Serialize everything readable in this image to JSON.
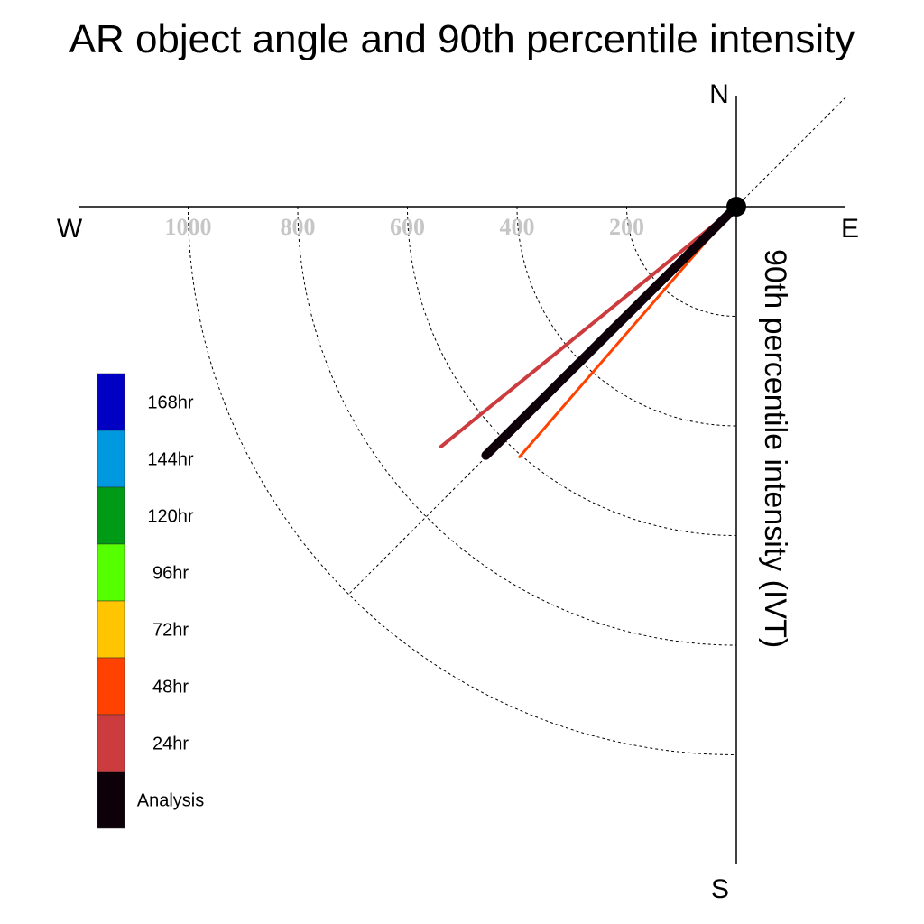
{
  "chart_data": {
    "type": "polar-vector",
    "title": "AR object angle and 90th percentile intensity",
    "radial_axis_label": "90th percentile intensity (IVT)",
    "radial_ticks": [
      200,
      400,
      600,
      800,
      1000
    ],
    "compass": {
      "north": "N",
      "south": "S",
      "east": "E",
      "west": "W"
    },
    "grid": true,
    "legend_position": "left",
    "legend": [
      {
        "label": "168hr",
        "color": "#0000c4"
      },
      {
        "label": "144hr",
        "color": "#0098df"
      },
      {
        "label": "120hr",
        "color": "#009b16"
      },
      {
        "label": "96hr",
        "color": "#56ff00"
      },
      {
        "label": "72hr",
        "color": "#ffc500"
      },
      {
        "label": "48hr",
        "color": "#ff4200"
      },
      {
        "label": "24hr",
        "color": "#cc3b3e"
      },
      {
        "label": "Analysis",
        "color": "#0d0008"
      }
    ],
    "series": [
      {
        "name": "48hr",
        "color": "#ff4200",
        "angle_deg": 220.9,
        "intensity": 604,
        "width": 3
      },
      {
        "name": "24hr",
        "color": "#cc3b3e",
        "angle_deg": 230.9,
        "intensity": 694,
        "width": 4
      },
      {
        "name": "Analysis",
        "color": "#0d0008",
        "angle_deg": 225.2,
        "intensity": 644,
        "width": 10
      }
    ]
  }
}
